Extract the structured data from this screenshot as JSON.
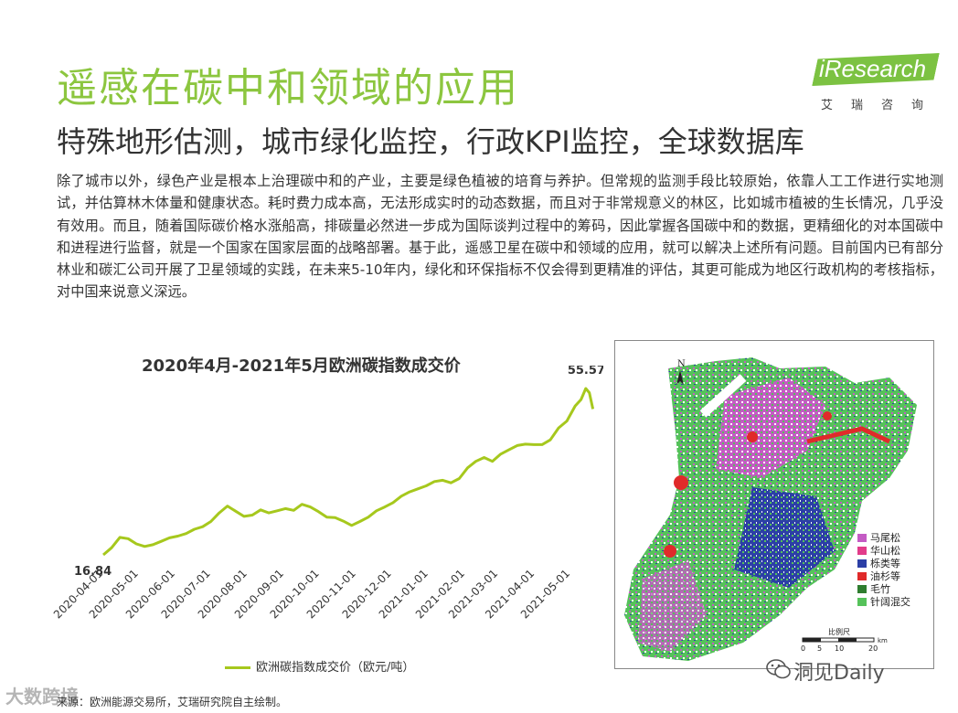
{
  "header": {
    "title": "遥感在碳中和领域的应用",
    "subtitle": "特殊地形估测，城市绿化监控，行政KPI监控，全球数据库"
  },
  "logo": {
    "brand": "iResearch",
    "sub": "艾瑞咨询",
    "color": "#7cc242"
  },
  "body_text": "除了城市以外，绿色产业是根本上治理碳中和的产业，主要是绿色植被的培育与养护。但常规的监测手段比较原始，依靠人工工作进行实地测试，并估算林木体量和健康状态。耗时费力成本高，无法形成实时的动态数据，而且对于非常规意义的林区，比如城市植被的生长情况，几乎没有效用。而且，随着国际碳价格水涨船高，排碳量必然进一步成为国际谈判过程中的筹码，因此掌握各国碳中和的数据，更精细化的对本国碳中和进程进行监督，就是一个国家在国家层面的战略部署。基于此，遥感卫星在碳中和领域的应用，就可以解决上述所有问题。目前国内已有部分林业和碳汇公司开展了卫星领域的实践，在未来5-10年内，绿化和环保指标不仅会得到更精准的评估，其更可能成为地区行政机构的考核指标，对中国来说意义深远。",
  "chart_data": {
    "type": "line",
    "title": "2020年4月-2021年5月欧洲碳指数成交价",
    "x_ticks": [
      "2020-04-01",
      "2020-05-01",
      "2020-06-01",
      "2020-07-01",
      "2020-08-01",
      "2020-09-01",
      "2020-10-01",
      "2020-11-01",
      "2020-12-01",
      "2021-01-01",
      "2021-02-01",
      "2021-03-01",
      "2021-04-01",
      "2021-05-01"
    ],
    "series": [
      {
        "name": "欧洲碳指数成交价（欧元/吨）",
        "color": "#a6c81d",
        "x": [
          "2020-04-01",
          "2020-04-08",
          "2020-04-15",
          "2020-04-22",
          "2020-04-29",
          "2020-05-06",
          "2020-05-13",
          "2020-05-20",
          "2020-05-27",
          "2020-06-03",
          "2020-06-10",
          "2020-06-17",
          "2020-06-24",
          "2020-07-01",
          "2020-07-08",
          "2020-07-15",
          "2020-07-22",
          "2020-07-29",
          "2020-08-05",
          "2020-08-12",
          "2020-08-19",
          "2020-08-26",
          "2020-09-02",
          "2020-09-09",
          "2020-09-16",
          "2020-09-23",
          "2020-09-30",
          "2020-10-07",
          "2020-10-14",
          "2020-10-21",
          "2020-10-28",
          "2020-11-04",
          "2020-11-11",
          "2020-11-18",
          "2020-11-25",
          "2020-12-02",
          "2020-12-09",
          "2020-12-16",
          "2020-12-23",
          "2020-12-30",
          "2021-01-06",
          "2021-01-13",
          "2021-01-20",
          "2021-01-27",
          "2021-02-03",
          "2021-02-10",
          "2021-02-17",
          "2021-02-24",
          "2021-03-03",
          "2021-03-10",
          "2021-03-17",
          "2021-03-24",
          "2021-03-31",
          "2021-04-07",
          "2021-04-14",
          "2021-04-21",
          "2021-04-28",
          "2021-05-05",
          "2021-05-10",
          "2021-05-14",
          "2021-05-17",
          "2021-05-20"
        ],
        "values": [
          16.84,
          18.5,
          20.9,
          20.6,
          19.4,
          18.8,
          19.2,
          20.0,
          20.8,
          21.2,
          21.8,
          22.8,
          23.4,
          24.6,
          26.6,
          28.2,
          27.0,
          25.8,
          26.1,
          27.3,
          26.6,
          27.1,
          27.6,
          27.2,
          28.6,
          28.0,
          26.9,
          25.6,
          25.5,
          24.7,
          23.7,
          24.6,
          25.6,
          27.1,
          28.0,
          29.0,
          30.5,
          31.5,
          32.2,
          32.9,
          33.9,
          34.2,
          33.6,
          34.6,
          37.1,
          38.6,
          39.5,
          38.6,
          40.3,
          41.3,
          42.3,
          42.6,
          42.5,
          42.5,
          43.6,
          46.4,
          48.0,
          51.5,
          53.0,
          55.57,
          54.6,
          50.8
        ],
        "start_label": "16.84",
        "peak_label": "55.57"
      }
    ],
    "grid": false
  },
  "map": {
    "north": "N",
    "legend": [
      {
        "label": "马尾松",
        "color": "#c45bc4"
      },
      {
        "label": "华山松",
        "color": "#e23c8a"
      },
      {
        "label": "栎类等",
        "color": "#2c3fa6"
      },
      {
        "label": "油杉等",
        "color": "#e02a2a"
      },
      {
        "label": "毛竹",
        "color": "#2f7d2f"
      },
      {
        "label": "针阔混交",
        "color": "#55c25a"
      }
    ],
    "scale_label": "比例尺",
    "scale_ticks": [
      "0",
      "5",
      "10",
      "20"
    ],
    "scale_unit": "km"
  },
  "source": "来源：欧洲能源交易所，艾瑞研究院自主绘制。",
  "watermarks": {
    "left": "大数跨境",
    "right": "洞见Daily"
  }
}
